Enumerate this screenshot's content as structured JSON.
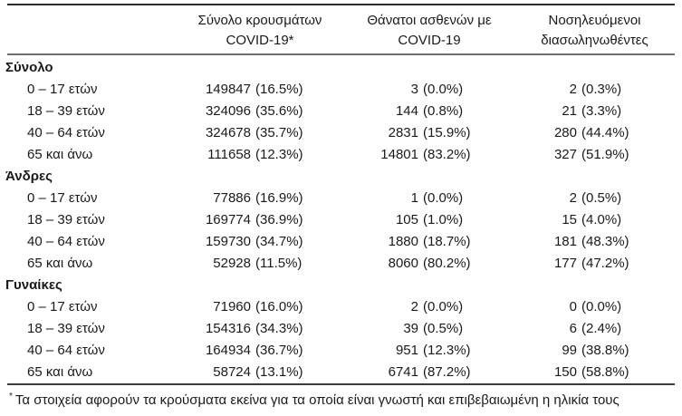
{
  "colors": {
    "text": "#1a1a1a",
    "rule_dark": "#2d2d2d",
    "rule_gray": "#6f6f6f"
  },
  "header": {
    "columns": [
      {
        "line1": "Σύνολο κρουσμάτων",
        "line2": "COVID-19*"
      },
      {
        "line1": "Θάνατοι ασθενών με",
        "line2": "COVID-19"
      },
      {
        "line1": "Νοσηλευόμενοι",
        "line2": "διασωληνωθέντες"
      }
    ]
  },
  "groups": [
    {
      "label": "Σύνολο",
      "rows": [
        {
          "label": "0 – 17 ετών",
          "cases_count": "149847",
          "cases_pct": "(16.5%)",
          "deaths_count": "3",
          "deaths_pct": "(0.0%)",
          "intubated_count": "2",
          "intubated_pct": "(0.3%)"
        },
        {
          "label": "18 – 39 ετών",
          "cases_count": "324096",
          "cases_pct": "(35.6%)",
          "deaths_count": "144",
          "deaths_pct": "(0.8%)",
          "intubated_count": "21",
          "intubated_pct": "(3.3%)"
        },
        {
          "label": "40 – 64 ετών",
          "cases_count": "324678",
          "cases_pct": "(35.7%)",
          "deaths_count": "2831",
          "deaths_pct": "(15.9%)",
          "intubated_count": "280",
          "intubated_pct": "(44.4%)"
        },
        {
          "label": "65 και άνω",
          "cases_count": "111658",
          "cases_pct": "(12.3%)",
          "deaths_count": "14801",
          "deaths_pct": "(83.2%)",
          "intubated_count": "327",
          "intubated_pct": "(51.9%)"
        }
      ]
    },
    {
      "label": "Άνδρες",
      "rows": [
        {
          "label": "0 – 17 ετών",
          "cases_count": "77886",
          "cases_pct": "(16.9%)",
          "deaths_count": "1",
          "deaths_pct": "(0.0%)",
          "intubated_count": "2",
          "intubated_pct": "(0.5%)"
        },
        {
          "label": "18 – 39 ετών",
          "cases_count": "169774",
          "cases_pct": "(36.9%)",
          "deaths_count": "105",
          "deaths_pct": "(1.0%)",
          "intubated_count": "15",
          "intubated_pct": "(4.0%)"
        },
        {
          "label": "40 – 64 ετών",
          "cases_count": "159730",
          "cases_pct": "(34.7%)",
          "deaths_count": "1880",
          "deaths_pct": "(18.7%)",
          "intubated_count": "181",
          "intubated_pct": "(48.3%)"
        },
        {
          "label": "65 και άνω",
          "cases_count": "52928",
          "cases_pct": "(11.5%)",
          "deaths_count": "8060",
          "deaths_pct": "(80.2%)",
          "intubated_count": "177",
          "intubated_pct": "(47.2%)"
        }
      ]
    },
    {
      "label": "Γυναίκες",
      "rows": [
        {
          "label": "0 – 17 ετών",
          "cases_count": "71960",
          "cases_pct": "(16.0%)",
          "deaths_count": "2",
          "deaths_pct": "(0.0%)",
          "intubated_count": "0",
          "intubated_pct": "(0.0%)"
        },
        {
          "label": "18 – 39 ετών",
          "cases_count": "154316",
          "cases_pct": "(34.3%)",
          "deaths_count": "39",
          "deaths_pct": "(0.5%)",
          "intubated_count": "6",
          "intubated_pct": "(2.4%)"
        },
        {
          "label": "40 – 64 ετών",
          "cases_count": "164934",
          "cases_pct": "(36.7%)",
          "deaths_count": "951",
          "deaths_pct": "(12.3%)",
          "intubated_count": "99",
          "intubated_pct": "(38.8%)"
        },
        {
          "label": "65 και άνω",
          "cases_count": "58724",
          "cases_pct": "(13.1%)",
          "deaths_count": "6741",
          "deaths_pct": "(87.2%)",
          "intubated_count": "150",
          "intubated_pct": "(58.8%)"
        }
      ]
    }
  ],
  "footnote": {
    "marker": "*",
    "text": "Τα στοιχεία αφορούν τα κρούσματα εκείνα για τα οποία είναι γνωστή και επιβεβαιωμένη η ηλικία τους"
  }
}
